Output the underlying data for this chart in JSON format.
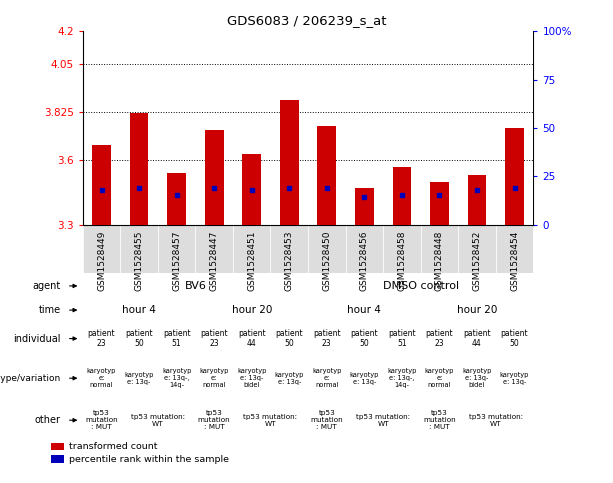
{
  "title": "GDS6083 / 206239_s_at",
  "samples": [
    "GSM1528449",
    "GSM1528455",
    "GSM1528457",
    "GSM1528447",
    "GSM1528451",
    "GSM1528453",
    "GSM1528450",
    "GSM1528456",
    "GSM1528458",
    "GSM1528448",
    "GSM1528452",
    "GSM1528454"
  ],
  "bar_tops": [
    3.67,
    3.82,
    3.54,
    3.74,
    3.63,
    3.88,
    3.76,
    3.47,
    3.57,
    3.5,
    3.53,
    3.75
  ],
  "blue_positions": [
    3.46,
    3.47,
    3.44,
    3.47,
    3.46,
    3.47,
    3.47,
    3.43,
    3.44,
    3.44,
    3.46,
    3.47
  ],
  "ymin": 3.3,
  "ymax": 4.2,
  "yticks_left": [
    3.3,
    3.6,
    3.825,
    4.05,
    4.2
  ],
  "ytick_labels_left": [
    "3.3",
    "3.6",
    "3.825",
    "4.05",
    "4.2"
  ],
  "hlines": [
    3.6,
    3.825,
    4.05
  ],
  "bar_color": "#cc0000",
  "blue_color": "#0000bb",
  "agent_groups": [
    {
      "text": "BV6",
      "c0": 0,
      "c1": 5,
      "color": "#88cc88"
    },
    {
      "text": "DMSO control",
      "c0": 6,
      "c1": 11,
      "color": "#66bb55"
    }
  ],
  "time_groups": [
    {
      "text": "hour 4",
      "c0": 0,
      "c1": 2,
      "color": "#aaddee"
    },
    {
      "text": "hour 20",
      "c0": 3,
      "c1": 5,
      "color": "#44bbdd"
    },
    {
      "text": "hour 4",
      "c0": 6,
      "c1": 8,
      "color": "#aaddee"
    },
    {
      "text": "hour 20",
      "c0": 9,
      "c1": 11,
      "color": "#44bbdd"
    }
  ],
  "individual_cells": [
    {
      "text": "patient\n23",
      "color": "#dddddd"
    },
    {
      "text": "patient\n50",
      "color": "#cc88cc"
    },
    {
      "text": "patient\n51",
      "color": "#cc88cc"
    },
    {
      "text": "patient\n23",
      "color": "#dddddd"
    },
    {
      "text": "patient\n44",
      "color": "#dddddd"
    },
    {
      "text": "patient\n50",
      "color": "#cc88cc"
    },
    {
      "text": "patient\n23",
      "color": "#dddddd"
    },
    {
      "text": "patient\n50",
      "color": "#cc88cc"
    },
    {
      "text": "patient\n51",
      "color": "#cc88cc"
    },
    {
      "text": "patient\n23",
      "color": "#dddddd"
    },
    {
      "text": "patient\n44",
      "color": "#dddddd"
    },
    {
      "text": "patient\n50",
      "color": "#cc88cc"
    }
  ],
  "genotype_cells": [
    {
      "text": "karyotyp\ne:\nnormal",
      "color": "#dddddd"
    },
    {
      "text": "karyotyp\ne: 13q-",
      "color": "#ee88aa"
    },
    {
      "text": "karyotyp\ne: 13q-,\n14q-",
      "color": "#cc88cc"
    },
    {
      "text": "karyotyp\ne:\nnormal",
      "color": "#dddddd"
    },
    {
      "text": "karyotyp\ne: 13q-\nbidel",
      "color": "#ee88aa"
    },
    {
      "text": "karyotyp\ne: 13q-",
      "color": "#ee88aa"
    },
    {
      "text": "karyotyp\ne:\nnormal",
      "color": "#dddddd"
    },
    {
      "text": "karyotyp\ne: 13q-",
      "color": "#ee88aa"
    },
    {
      "text": "karyotyp\ne: 13q-,\n14q-",
      "color": "#cc88cc"
    },
    {
      "text": "karyotyp\ne:\nnormal",
      "color": "#dddddd"
    },
    {
      "text": "karyotyp\ne: 13q-\nbidel",
      "color": "#ee88aa"
    },
    {
      "text": "karyotyp\ne: 13q-",
      "color": "#ee88aa"
    }
  ],
  "other_groups": [
    {
      "text": "tp53\nmutation\n: MUT",
      "c0": 0,
      "c1": 0,
      "color": "#dddddd"
    },
    {
      "text": "tp53 mutation:\nWT",
      "c0": 1,
      "c1": 2,
      "color": "#eedd66"
    },
    {
      "text": "tp53\nmutation\n: MUT",
      "c0": 3,
      "c1": 3,
      "color": "#dddddd"
    },
    {
      "text": "tp53 mutation:\nWT",
      "c0": 4,
      "c1": 5,
      "color": "#eedd66"
    },
    {
      "text": "tp53\nmutation\n: MUT",
      "c0": 6,
      "c1": 6,
      "color": "#dddddd"
    },
    {
      "text": "tp53 mutation:\nWT",
      "c0": 7,
      "c1": 8,
      "color": "#eedd66"
    },
    {
      "text": "tp53\nmutation\n: MUT",
      "c0": 9,
      "c1": 9,
      "color": "#dddddd"
    },
    {
      "text": "tp53 mutation:\nWT",
      "c0": 10,
      "c1": 11,
      "color": "#eedd66"
    }
  ],
  "legend_items": [
    {
      "label": "transformed count",
      "color": "#cc0000"
    },
    {
      "label": "percentile rank within the sample",
      "color": "#0000bb"
    }
  ]
}
